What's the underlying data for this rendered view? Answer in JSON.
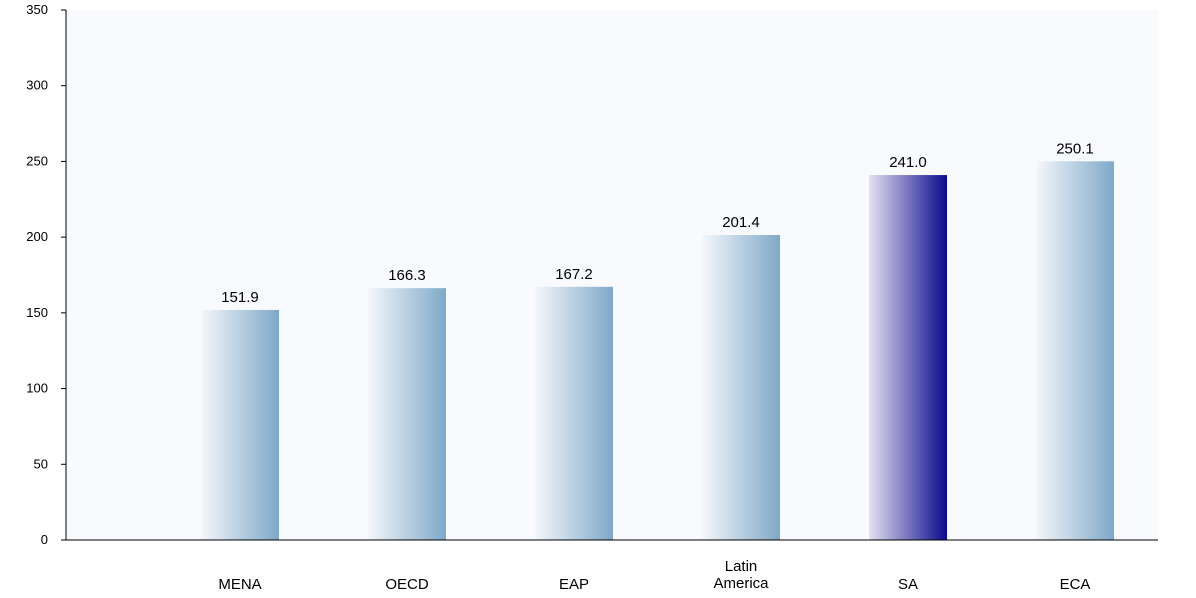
{
  "chart_data": {
    "type": "bar",
    "categories": [
      "MENA",
      "OECD",
      "EAP",
      "Latin America",
      "SA",
      "ECA"
    ],
    "category_lines": [
      [
        "MENA"
      ],
      [
        "OECD"
      ],
      [
        "EAP"
      ],
      [
        "Latin",
        "America"
      ],
      [
        "SA"
      ],
      [
        "ECA"
      ]
    ],
    "values": [
      151.9,
      166.3,
      167.2,
      201.4,
      241.0,
      250.1
    ],
    "value_labels": [
      "151.9",
      "166.3",
      "167.2",
      "201.4",
      "241.0",
      "250.1"
    ],
    "highlight_category": "SA",
    "ylim": [
      0,
      350
    ],
    "yticks": [
      0,
      50,
      100,
      150,
      200,
      250,
      300,
      350
    ],
    "title": "",
    "xlabel": "",
    "ylabel": "",
    "grid": false,
    "legend": "none",
    "colors": {
      "bar_light": "#f4f7fb",
      "bar_dark": "#7fa8c8",
      "highlight_light": "#e4e0f2",
      "highlight_dark": "#0a0a8c",
      "plot_background": "#f8fafd",
      "axis": "#000000"
    }
  }
}
